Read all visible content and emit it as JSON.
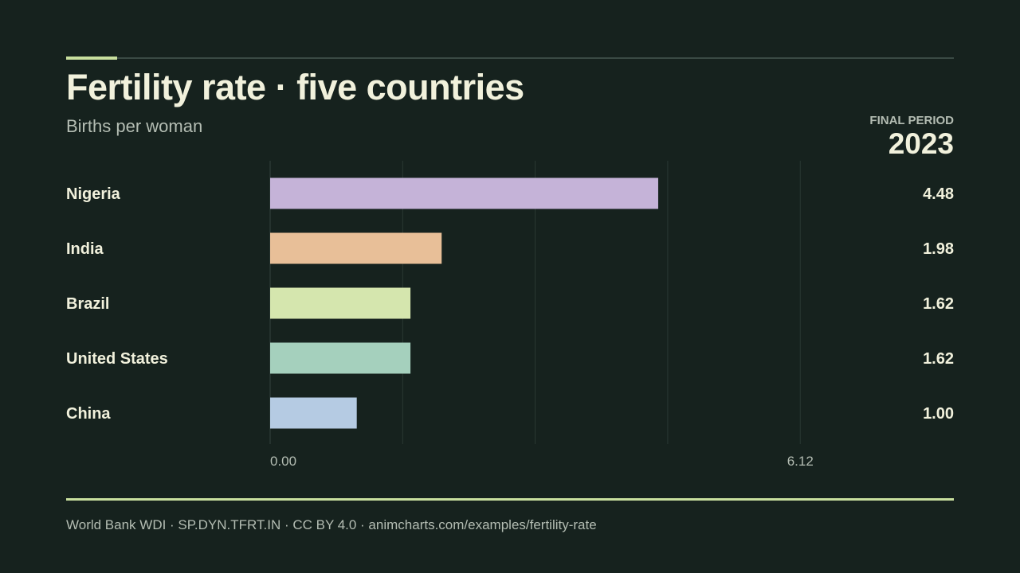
{
  "header": {
    "title": "Fertility rate · five countries",
    "subtitle": "Births per woman",
    "period_label": "FINAL PERIOD",
    "period_value": "2023"
  },
  "footer": {
    "source": "World Bank WDI · SP.DYN.TFRT.IN · CC BY 4.0 · animcharts.com/examples/fertility-rate"
  },
  "colors": {
    "background": "#16221e",
    "accent": "#c8df9e",
    "text": "#f1f1dc",
    "muted": "#b4bdb3",
    "grid": "#2a3833"
  },
  "chart_data": {
    "type": "bar",
    "orientation": "horizontal",
    "categories": [
      "Nigeria",
      "India",
      "Brazil",
      "United States",
      "China"
    ],
    "values": [
      4.48,
      1.98,
      1.62,
      1.62,
      1.0
    ],
    "value_labels": [
      "4.48",
      "1.98",
      "1.62",
      "1.62",
      "1.00"
    ],
    "bar_colors": [
      "#c5b3d8",
      "#e8bf98",
      "#d5e6ae",
      "#a5d0bd",
      "#b5cbe3"
    ],
    "xlim": [
      0,
      7.65
    ],
    "x_tick_labels": [
      {
        "value": 0,
        "label": "0.00"
      },
      {
        "value": 6.12,
        "label": "6.12"
      }
    ],
    "gridlines": [
      0,
      1.53,
      3.06,
      4.59,
      6.12
    ],
    "grid": true
  }
}
